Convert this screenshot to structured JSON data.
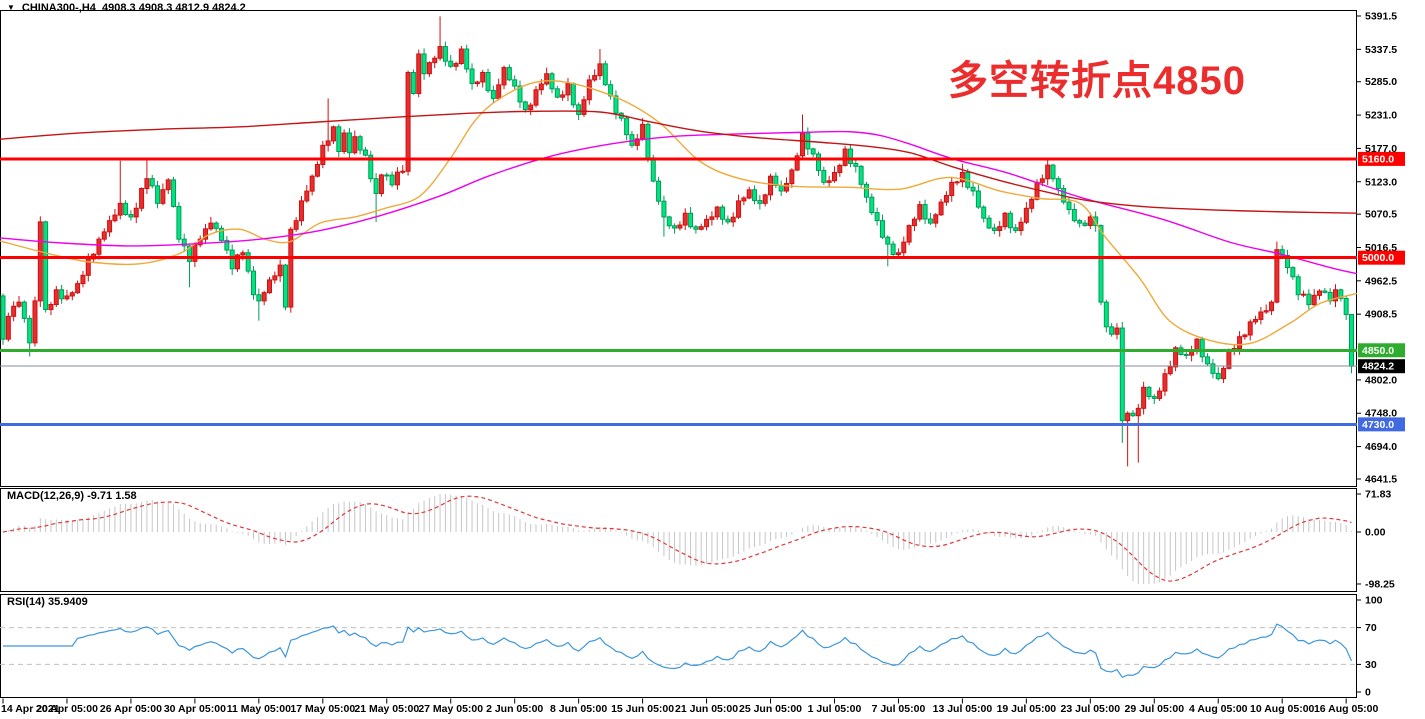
{
  "header": {
    "symbol": "CHINA300-,H4",
    "ohlc": "4908.3 4908.3 4812.9 4824.2"
  },
  "indicators": {
    "macd": {
      "label": "MACD(12,26,9) -9.71 1.58",
      "name": "MACD",
      "params": "12,26,9",
      "value": -9.71,
      "signal_value": 1.58
    },
    "rsi": {
      "label": "RSI(14) 35.9409",
      "name": "RSI",
      "period": 14,
      "value": 35.9409
    }
  },
  "annotation": {
    "text": "多空转折点4850",
    "color": "#EB2D2D"
  },
  "chart_data": {
    "type": "candlestick",
    "symbol": "CHINA300-",
    "timeframe": "H4",
    "title": "CHINA300-,H4 4908.3 4908.3 4812.9 4824.2",
    "convention": "red=bullish, green=bearish",
    "y_axis": {
      "min": 4641.5,
      "max": 5391.5,
      "ticks": [
        5391.5,
        5337.5,
        5285.0,
        5231.0,
        5177.0,
        5123.0,
        5070.5,
        5016.5,
        4962.5,
        4908.5,
        4802.0,
        4748.0,
        4694.0,
        4641.5
      ]
    },
    "macd_axis": {
      "ticks": [
        71.83,
        0,
        -98.25
      ]
    },
    "rsi_axis": {
      "ticks": [
        100,
        70,
        30,
        0
      ],
      "levels": [
        70,
        30
      ]
    },
    "x_axis": {
      "candles_per_label": 12,
      "labels": [
        "14 Apr 2021",
        "20 Apr 05:00",
        "26 Apr 05:00",
        "30 Apr 05:00",
        "11 May 05:00",
        "17 May 05:00",
        "21 May 05:00",
        "27 May 05:00",
        "2 Jun 05:00",
        "8 Jun 05:00",
        "15 Jun 05:00",
        "21 Jun 05:00",
        "25 Jun 05:00",
        "1 Jul 05:00",
        "7 Jul 05:00",
        "13 Jul 05:00",
        "19 Jul 05:00",
        "23 Jul 05:00",
        "29 Jul 05:00",
        "4 Aug 05:00",
        "10 Aug 05:00",
        "16 Aug 05:00"
      ]
    },
    "levels": [
      {
        "price": 5160.0,
        "label": "5160.0",
        "color": "#FF0000",
        "width": 3
      },
      {
        "price": 5000.0,
        "label": "5000.0",
        "color": "#FF0000",
        "width": 3
      },
      {
        "price": 4850.0,
        "label": "4850.0",
        "color": "#2EAC2E",
        "width": 3
      },
      {
        "price": 4730.0,
        "label": "4730.0",
        "color": "#4169E1",
        "width": 3
      },
      {
        "price": 4824.2,
        "label": "4824.2",
        "color": "#808E9A",
        "width": 1,
        "badge_bg": "#000000",
        "role": "current-price"
      }
    ],
    "candles": {
      "count": 254,
      "first_open": 4938,
      "close_anchors": [
        [
          0,
          4868
        ],
        [
          1,
          4905
        ],
        [
          3,
          4928
        ],
        [
          5,
          4862
        ],
        [
          6,
          4930
        ],
        [
          7,
          5058
        ],
        [
          8,
          4916
        ],
        [
          10,
          4948
        ],
        [
          12,
          4938
        ],
        [
          14,
          4958
        ],
        [
          16,
          4998
        ],
        [
          18,
          5030
        ],
        [
          20,
          5060
        ],
        [
          22,
          5088
        ],
        [
          24,
          5066
        ],
        [
          26,
          5112
        ],
        [
          27,
          5128
        ],
        [
          29,
          5088
        ],
        [
          31,
          5126
        ],
        [
          33,
          5030
        ],
        [
          35,
          4994
        ],
        [
          37,
          5030
        ],
        [
          39,
          5056
        ],
        [
          41,
          5028
        ],
        [
          43,
          4982
        ],
        [
          45,
          5008
        ],
        [
          47,
          4940
        ],
        [
          48,
          4930
        ],
        [
          50,
          4964
        ],
        [
          52,
          4988
        ],
        [
          53,
          4920
        ],
        [
          54,
          5046
        ],
        [
          56,
          5092
        ],
        [
          58,
          5132
        ],
        [
          60,
          5182
        ],
        [
          62,
          5212
        ],
        [
          63,
          5172
        ],
        [
          64,
          5202
        ],
        [
          65,
          5170
        ],
        [
          66,
          5196
        ],
        [
          68,
          5166
        ],
        [
          69,
          5128
        ],
        [
          70,
          5104
        ],
        [
          71,
          5134
        ],
        [
          73,
          5118
        ],
        [
          75,
          5140
        ],
        [
          76,
          5300
        ],
        [
          77,
          5266
        ],
        [
          78,
          5330
        ],
        [
          79,
          5298
        ],
        [
          80,
          5316
        ],
        [
          82,
          5342
        ],
        [
          84,
          5310
        ],
        [
          86,
          5338
        ],
        [
          88,
          5282
        ],
        [
          90,
          5300
        ],
        [
          92,
          5258
        ],
        [
          94,
          5308
        ],
        [
          96,
          5278
        ],
        [
          98,
          5240
        ],
        [
          100,
          5272
        ],
        [
          102,
          5298
        ],
        [
          104,
          5260
        ],
        [
          106,
          5282
        ],
        [
          108,
          5232
        ],
        [
          110,
          5288
        ],
        [
          112,
          5314
        ],
        [
          114,
          5262
        ],
        [
          116,
          5226
        ],
        [
          118,
          5182
        ],
        [
          120,
          5216
        ],
        [
          122,
          5124
        ],
        [
          124,
          5066
        ],
        [
          126,
          5048
        ],
        [
          128,
          5072
        ],
        [
          130,
          5046
        ],
        [
          132,
          5062
        ],
        [
          134,
          5082
        ],
        [
          136,
          5058
        ],
        [
          138,
          5092
        ],
        [
          140,
          5110
        ],
        [
          142,
          5088
        ],
        [
          144,
          5132
        ],
        [
          146,
          5108
        ],
        [
          148,
          5142
        ],
        [
          150,
          5202
        ],
        [
          152,
          5168
        ],
        [
          154,
          5122
        ],
        [
          156,
          5138
        ],
        [
          158,
          5176
        ],
        [
          160,
          5148
        ],
        [
          162,
          5098
        ],
        [
          164,
          5060
        ],
        [
          166,
          5022
        ],
        [
          168,
          5008
        ],
        [
          170,
          5052
        ],
        [
          172,
          5086
        ],
        [
          174,
          5056
        ],
        [
          176,
          5090
        ],
        [
          178,
          5122
        ],
        [
          180,
          5138
        ],
        [
          182,
          5108
        ],
        [
          184,
          5064
        ],
        [
          186,
          5044
        ],
        [
          188,
          5072
        ],
        [
          190,
          5044
        ],
        [
          192,
          5080
        ],
        [
          194,
          5122
        ],
        [
          196,
          5150
        ],
        [
          198,
          5112
        ],
        [
          200,
          5078
        ],
        [
          202,
          5056
        ],
        [
          204,
          5066
        ],
        [
          205,
          5052
        ],
        [
          206,
          4928
        ],
        [
          207,
          4888
        ],
        [
          208,
          4876
        ],
        [
          209,
          4886
        ],
        [
          210,
          4736
        ],
        [
          211,
          4748
        ],
        [
          212,
          4744
        ],
        [
          213,
          4756
        ],
        [
          214,
          4790
        ],
        [
          216,
          4772
        ],
        [
          218,
          4812
        ],
        [
          220,
          4854
        ],
        [
          222,
          4842
        ],
        [
          224,
          4868
        ],
        [
          226,
          4828
        ],
        [
          228,
          4804
        ],
        [
          230,
          4848
        ],
        [
          232,
          4872
        ],
        [
          234,
          4896
        ],
        [
          236,
          4912
        ],
        [
          238,
          4928
        ],
        [
          239,
          5013
        ],
        [
          241,
          4984
        ],
        [
          243,
          4940
        ],
        [
          245,
          4924
        ],
        [
          247,
          4946
        ],
        [
          249,
          4930
        ],
        [
          250,
          4948
        ],
        [
          251,
          4934
        ],
        [
          252,
          4908
        ],
        [
          253,
          4824.2
        ]
      ],
      "wick_overrides": [
        [
          5,
          null,
          4840
        ],
        [
          22,
          5157,
          null
        ],
        [
          27,
          5161,
          null
        ],
        [
          35,
          null,
          4952
        ],
        [
          48,
          null,
          4898
        ],
        [
          61,
          5258,
          null
        ],
        [
          70,
          null,
          5058
        ],
        [
          82,
          5391,
          null
        ],
        [
          112,
          5338,
          null
        ],
        [
          124,
          null,
          5034
        ],
        [
          150,
          5232,
          null
        ],
        [
          166,
          null,
          4986
        ],
        [
          180,
          5152,
          null
        ],
        [
          196,
          5160,
          null
        ],
        [
          210,
          null,
          4700
        ],
        [
          211,
          null,
          4662
        ],
        [
          213,
          null,
          4668
        ],
        [
          239,
          5026,
          null
        ],
        [
          253,
          4908.3,
          4812.9
        ]
      ]
    },
    "moving_averages": [
      {
        "name": "ma-fast-orange",
        "color": "#EFA93A",
        "anchors": [
          [
            0,
            5027
          ],
          [
            50,
            5006
          ],
          [
            90,
            4993
          ],
          [
            140,
            4990
          ],
          [
            180,
            5007
          ],
          [
            210,
            5038
          ],
          [
            240,
            5046
          ],
          [
            265,
            5030
          ],
          [
            290,
            5026
          ],
          [
            320,
            5056
          ],
          [
            355,
            5066
          ],
          [
            385,
            5080
          ],
          [
            420,
            5100
          ],
          [
            450,
            5160
          ],
          [
            475,
            5222
          ],
          [
            500,
            5258
          ],
          [
            535,
            5284
          ],
          [
            570,
            5283
          ],
          [
            620,
            5257
          ],
          [
            660,
            5218
          ],
          [
            700,
            5156
          ],
          [
            740,
            5128
          ],
          [
            790,
            5116
          ],
          [
            850,
            5114
          ],
          [
            900,
            5111
          ],
          [
            950,
            5130
          ],
          [
            1000,
            5108
          ],
          [
            1040,
            5096
          ],
          [
            1080,
            5088
          ],
          [
            1105,
            5034
          ],
          [
            1140,
            4966
          ],
          [
            1170,
            4897
          ],
          [
            1210,
            4866
          ],
          [
            1250,
            4861
          ],
          [
            1290,
            4894
          ],
          [
            1320,
            4926
          ],
          [
            1357,
            4942
          ]
        ]
      },
      {
        "name": "ma-mid-magenta",
        "color": "#EE00EE",
        "anchors": [
          [
            0,
            5032
          ],
          [
            60,
            5024
          ],
          [
            130,
            5019
          ],
          [
            200,
            5023
          ],
          [
            260,
            5030
          ],
          [
            320,
            5044
          ],
          [
            380,
            5068
          ],
          [
            440,
            5100
          ],
          [
            490,
            5133
          ],
          [
            550,
            5164
          ],
          [
            610,
            5184
          ],
          [
            670,
            5196
          ],
          [
            730,
            5200
          ],
          [
            800,
            5203
          ],
          [
            850,
            5204
          ],
          [
            880,
            5198
          ],
          [
            910,
            5184
          ],
          [
            953,
            5160
          ],
          [
            1010,
            5136
          ],
          [
            1080,
            5098
          ],
          [
            1163,
            5062
          ],
          [
            1230,
            5025
          ],
          [
            1280,
            5006
          ],
          [
            1330,
            4984
          ],
          [
            1357,
            4974
          ]
        ]
      },
      {
        "name": "ma-slow-darkred",
        "color": "#C41414",
        "anchors": [
          [
            0,
            5192
          ],
          [
            80,
            5202
          ],
          [
            160,
            5208
          ],
          [
            240,
            5212
          ],
          [
            320,
            5220
          ],
          [
            400,
            5228
          ],
          [
            470,
            5234
          ],
          [
            530,
            5237
          ],
          [
            600,
            5236
          ],
          [
            650,
            5220
          ],
          [
            700,
            5205
          ],
          [
            760,
            5194
          ],
          [
            820,
            5187
          ],
          [
            870,
            5180
          ],
          [
            910,
            5170
          ],
          [
            953,
            5147
          ],
          [
            1000,
            5125
          ],
          [
            1050,
            5105
          ],
          [
            1090,
            5092
          ],
          [
            1150,
            5082
          ],
          [
            1220,
            5077
          ],
          [
            1290,
            5074
          ],
          [
            1357,
            5072
          ]
        ]
      }
    ],
    "colors": {
      "bull": "#E62E2E",
      "bull_border": "#D01010",
      "bear": "#00E57F",
      "bear_border": "#009C58",
      "macd_hist": "#C6C6C6",
      "macd_signal": "#DF3A3A",
      "rsi_line": "#3D97DC",
      "rsi_levels": "#C0C0C0",
      "frame": "#000000",
      "bg": "#FFFFFF",
      "axis_text": "#000000"
    }
  }
}
